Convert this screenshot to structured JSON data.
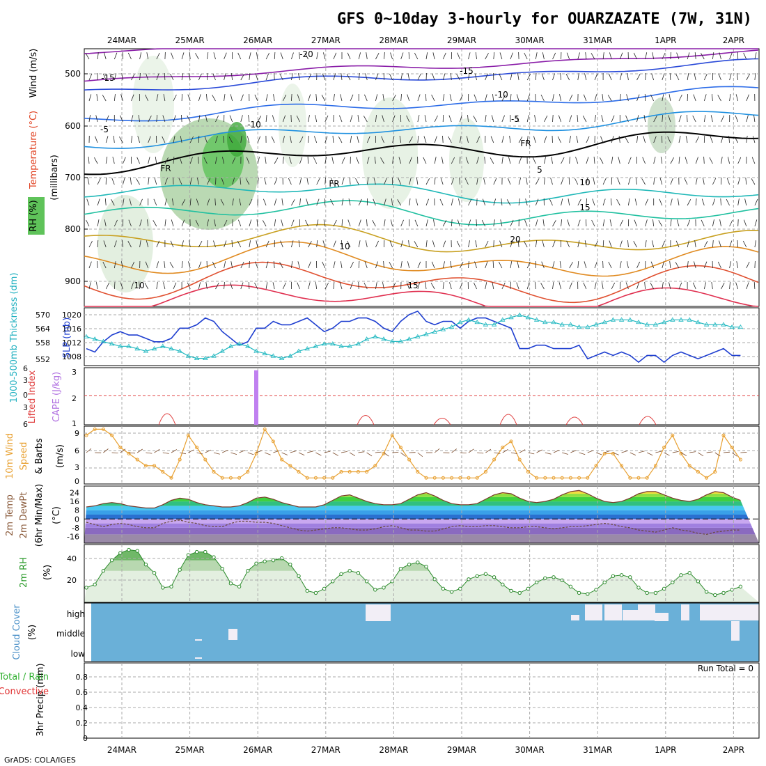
{
  "title": "GFS 0~10day 3-hourly for OUARZAZATE (7W, 31N)",
  "credit": "GrADS: COLA/IGES",
  "dates": [
    "24MAR",
    "25MAR",
    "26MAR",
    "27MAR",
    "28MAR",
    "29MAR",
    "30MAR",
    "31MAR",
    "1APR",
    "2APR"
  ],
  "colors": {
    "grid": "#aaaaaa",
    "frame": "#000000",
    "cloud": "#6ab0d8",
    "cloud_clear": "#f2eef6"
  },
  "panels": {
    "upper": {
      "label_wind": "Wind (m/s)",
      "label_temp": "Temperature (°C)",
      "label_rh": "RH (%)",
      "label_units": "(millibars)",
      "ylabels": [
        "500",
        "600",
        "700",
        "800",
        "900"
      ],
      "contour_labels": [
        "-20",
        "-15",
        "-15",
        "-10",
        "-10",
        "-5",
        "-5",
        "FR",
        "FR",
        "FR",
        "5",
        "10",
        "10",
        "10",
        "15",
        "15",
        "20"
      ]
    },
    "slp": {
      "label_thick": "1000-500mb Thickness (dm)",
      "label_slp": "SLP (mb)",
      "left_ticks": [
        "570",
        "564",
        "558",
        "552"
      ],
      "right_ticks": [
        "1020",
        "1016",
        "1012",
        "1008"
      ]
    },
    "cape": {
      "label_li": "Lifted Index",
      "label_cape": "CAPE (J/kg)",
      "left_ticks": [
        "6",
        "3",
        "0",
        "3",
        "6"
      ],
      "right_ticks": [
        "3",
        "2",
        "1"
      ]
    },
    "wind": {
      "label1": "10m Wind",
      "label2": "Speed",
      "label3": "& Barbs",
      "units": "(m/s)",
      "ticks": [
        "9",
        "6",
        "3",
        "0"
      ]
    },
    "temp": {
      "label1": "2m Temp",
      "label2": "2m DewPt",
      "label3": "(6hr Min/Max)",
      "units": "(°C)",
      "ticks": [
        "24",
        "16",
        "8",
        "0",
        "-8",
        "-16"
      ]
    },
    "rh": {
      "label": "2m RH",
      "units": "(%)",
      "ticks": [
        "40",
        "20"
      ]
    },
    "cloud": {
      "label": "Cloud Cover",
      "units": "(%)",
      "levels": [
        "high",
        "middle",
        "low"
      ]
    },
    "precip": {
      "label1": "3hr Precip (mm)",
      "label2": "Total / Rain",
      "label3": "Convective",
      "run_total": "Run Total = 0",
      "ticks": [
        "0.8",
        "0.6",
        "0.4",
        "0.2",
        "0"
      ]
    }
  },
  "chart_data": [
    {
      "type": "line",
      "title": "SLP (mb)",
      "x_start": "24MAR",
      "ylim": [
        1005,
        1022
      ],
      "values": [
        1010,
        1009,
        1012,
        1014,
        1015,
        1014,
        1014,
        1013,
        1012,
        1012,
        1013,
        1016,
        1016,
        1017,
        1019,
        1018,
        1015,
        1013,
        1011,
        1012,
        1016,
        1016,
        1018,
        1017,
        1017,
        1018,
        1019,
        1017,
        1015,
        1016,
        1018,
        1018,
        1019,
        1019,
        1018,
        1016,
        1015,
        1018,
        1020,
        1021,
        1018,
        1017,
        1018,
        1018,
        1016,
        1018,
        1019,
        1019,
        1018,
        1017,
        1016,
        1010,
        1010,
        1011,
        1011,
        1010,
        1010,
        1010,
        1011,
        1007,
        1008,
        1009,
        1008,
        1009,
        1008,
        1006,
        1008,
        1008,
        1006,
        1008,
        1009,
        1008,
        1007,
        1008,
        1009,
        1010,
        1008,
        1008
      ]
    },
    {
      "type": "line",
      "title": "1000-500mb Thickness (dm)",
      "x_start": "24MAR",
      "ylim": [
        549,
        573
      ],
      "values": [
        561,
        560,
        559,
        558,
        557,
        557,
        556,
        555,
        556,
        557,
        556,
        555,
        553,
        552,
        552,
        553,
        555,
        557,
        558,
        557,
        555,
        554,
        553,
        552,
        553,
        555,
        556,
        557,
        558,
        558,
        557,
        557,
        558,
        560,
        561,
        560,
        559,
        559,
        560,
        561,
        562,
        563,
        564,
        565,
        567,
        568,
        567,
        566,
        566,
        568,
        569,
        570,
        569,
        568,
        567,
        567,
        566,
        566,
        565,
        565,
        566,
        567,
        568,
        568,
        568,
        567,
        566,
        566,
        567,
        568,
        568,
        568,
        567,
        566,
        566,
        566,
        565,
        565
      ]
    },
    {
      "type": "line",
      "title": "10m Wind Speed (m/s)",
      "x_start": "24MAR",
      "ylim": [
        0,
        9.5
      ],
      "values": [
        8,
        9,
        9,
        8,
        6,
        5,
        4,
        3,
        3,
        2,
        1,
        4,
        8,
        6,
        4,
        2,
        1,
        1,
        1,
        2,
        5,
        9,
        7,
        4,
        3,
        2,
        1,
        1,
        1,
        1,
        2,
        2,
        2,
        2,
        3,
        5,
        8,
        6,
        4,
        2,
        1,
        1,
        1,
        1,
        1,
        1,
        1,
        2,
        4,
        6,
        7,
        4,
        2,
        1,
        1,
        1,
        1,
        1,
        1,
        1,
        3,
        5,
        5,
        3,
        1,
        1,
        1,
        3,
        6,
        8,
        5,
        3,
        2,
        1,
        2,
        8,
        6,
        4
      ]
    },
    {
      "type": "area",
      "title": "2m Temp (°C)",
      "x_start": "24MAR",
      "ylim": [
        -22,
        30
      ],
      "values": [
        11,
        12,
        14,
        15,
        14,
        12,
        11,
        10,
        10,
        13,
        17,
        19,
        18,
        15,
        13,
        12,
        11,
        11,
        12,
        15,
        19,
        20,
        18,
        15,
        13,
        11,
        11,
        11,
        13,
        17,
        21,
        22,
        19,
        16,
        14,
        13,
        13,
        14,
        18,
        22,
        24,
        21,
        17,
        14,
        13,
        13,
        14,
        18,
        22,
        24,
        23,
        19,
        16,
        15,
        16,
        18,
        22,
        25,
        26,
        23,
        19,
        16,
        15,
        16,
        19,
        23,
        25,
        25,
        22,
        19,
        17,
        16,
        18,
        22,
        25,
        24,
        20,
        17
      ]
    },
    {
      "type": "line",
      "title": "2m DewPt (°C)",
      "x_start": "24MAR",
      "ylim": [
        -22,
        30
      ],
      "values": [
        -3,
        -5,
        -7,
        -5,
        -4,
        -5,
        -7,
        -8,
        -8,
        -4,
        -2,
        -1,
        -3,
        -4,
        -6,
        -7,
        -7,
        -4,
        -2,
        -2,
        -3,
        -3,
        -4,
        -6,
        -8,
        -10,
        -11,
        -10,
        -9,
        -8,
        -8,
        -9,
        -10,
        -10,
        -9,
        -7,
        -6,
        -8,
        -10,
        -10,
        -11,
        -11,
        -9,
        -7,
        -6,
        -7,
        -7,
        -6,
        -6,
        -7,
        -8,
        -8,
        -7,
        -7,
        -8,
        -9,
        -8,
        -7,
        -7,
        -6,
        -5,
        -4,
        -5,
        -7,
        -8,
        -10,
        -11,
        -12,
        -10,
        -8,
        -10,
        -11,
        -13,
        -14,
        -12,
        -11,
        -10,
        -10
      ]
    },
    {
      "type": "area",
      "title": "2m RH (%)",
      "x_start": "24MAR",
      "ylim": [
        0,
        55
      ],
      "values": [
        14,
        17,
        30,
        40,
        47,
        50,
        49,
        36,
        28,
        14,
        15,
        31,
        45,
        48,
        48,
        43,
        32,
        18,
        15,
        30,
        37,
        39,
        40,
        42,
        36,
        25,
        11,
        9,
        13,
        20,
        27,
        30,
        28,
        20,
        12,
        14,
        20,
        32,
        36,
        38,
        34,
        22,
        13,
        10,
        13,
        22,
        25,
        27,
        24,
        17,
        11,
        9,
        13,
        19,
        23,
        24,
        21,
        15,
        9,
        8,
        12,
        19,
        25,
        26,
        24,
        14,
        9,
        9,
        13,
        19,
        26,
        28,
        20,
        10,
        7,
        9,
        12,
        15
      ]
    },
    {
      "type": "bar",
      "title": "CAPE (J/kg)",
      "x_start": "24MAR",
      "ylim": [
        1,
        3.2
      ],
      "values": [
        0,
        0,
        0,
        0,
        0,
        0,
        0,
        0,
        0,
        0,
        0,
        0,
        0,
        0,
        0,
        0,
        0,
        0,
        0,
        0,
        3.1,
        0,
        0,
        0,
        0,
        0,
        0,
        0,
        0,
        0,
        0,
        0,
        0,
        0,
        0,
        0,
        0,
        0,
        0,
        0,
        0,
        0,
        0,
        0,
        0,
        0,
        0,
        0,
        0,
        0,
        0,
        0,
        0,
        0,
        0,
        0,
        0,
        0,
        0,
        0,
        0,
        0,
        0,
        0,
        0,
        0,
        0,
        0,
        0,
        0,
        0,
        0,
        0,
        0,
        0,
        0,
        0,
        0
      ]
    }
  ]
}
